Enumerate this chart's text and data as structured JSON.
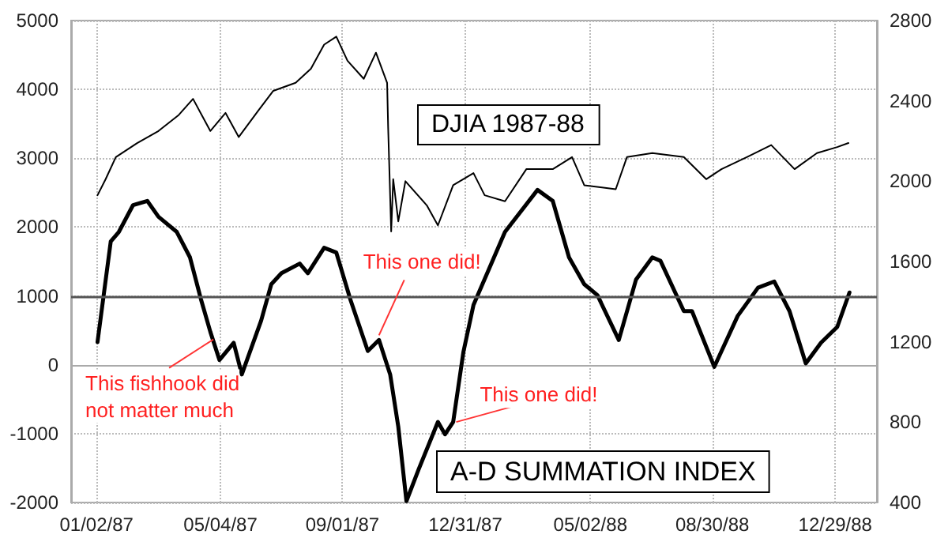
{
  "chart_data": {
    "type": "line",
    "x": [
      "1987-01-03",
      "1987-01-16",
      "1987-01-24",
      "1987-02-07",
      "1987-02-21",
      "1987-03-04",
      "1987-03-22",
      "1987-04-04",
      "1987-04-15",
      "1987-04-24",
      "1987-05-03",
      "1987-05-17",
      "1987-05-25",
      "1987-06-13",
      "1987-06-23",
      "1987-07-03",
      "1987-07-21",
      "1987-07-29",
      "1987-08-14",
      "1987-08-26",
      "1987-09-09",
      "1987-09-26",
      "1987-10-07",
      "1987-10-18",
      "1987-10-26",
      "1987-11-03",
      "1987-11-15",
      "1987-12-04",
      "1987-12-11",
      "1987-12-19",
      "1987-12-29",
      "1988-01-08",
      "1988-02-08",
      "1988-03-11",
      "1988-03-26",
      "1988-04-11",
      "1988-04-26",
      "1988-05-09",
      "1988-05-30",
      "1988-06-16",
      "1988-07-02",
      "1988-07-10",
      "1988-08-02",
      "1988-08-10",
      "1988-09-01",
      "1988-09-24",
      "1988-10-14",
      "1988-10-30",
      "1988-11-14",
      "1988-11-30",
      "1988-12-15",
      "1988-12-31",
      "1989-01-12"
    ],
    "series": [
      {
        "name": "DJIA 1987-88",
        "color": "#000000",
        "axis": "y2",
        "x": [
          "1987-01-03",
          "1987-01-11",
          "1987-01-21",
          "1987-02-11",
          "1987-03-04",
          "1987-03-24",
          "1987-04-07",
          "1987-04-24",
          "1987-05-09",
          "1987-05-22",
          "1987-06-10",
          "1987-06-25",
          "1987-07-17",
          "1987-08-01",
          "1987-08-14",
          "1987-08-26",
          "1987-09-06",
          "1987-09-22",
          "1987-10-04",
          "1987-10-15",
          "1987-10-16",
          "1987-10-19",
          "1987-10-21",
          "1987-10-26",
          "1987-11-02",
          "1987-11-23",
          "1987-12-04",
          "1987-12-19",
          "1988-01-08",
          "1988-01-19",
          "1988-02-08",
          "1988-02-29",
          "1988-03-26",
          "1988-04-14",
          "1988-04-26",
          "1988-05-27",
          "1988-06-07",
          "1988-07-02",
          "1988-08-02",
          "1988-08-24",
          "1988-09-08",
          "1988-10-03",
          "1988-10-27",
          "1988-11-19",
          "1988-12-11",
          "1988-12-31",
          "1989-01-11"
        ],
        "values": [
          1930,
          2010,
          2120,
          2190,
          2250,
          2330,
          2410,
          2250,
          2340,
          2220,
          2350,
          2450,
          2490,
          2560,
          2680,
          2720,
          2600,
          2510,
          2640,
          2490,
          2270,
          1750,
          2010,
          1800,
          2000,
          1880,
          1780,
          1980,
          2040,
          1930,
          1900,
          2060,
          2060,
          2120,
          1980,
          1960,
          2120,
          2140,
          2120,
          2010,
          2060,
          2120,
          2180,
          2060,
          2140,
          2170,
          2190
        ]
      },
      {
        "name": "A-D SUMMATION INDEX",
        "color": "#000000",
        "values": [
          330,
          1790,
          1930,
          2320,
          2380,
          2150,
          1930,
          1560,
          940,
          480,
          70,
          320,
          -140,
          640,
          1170,
          1330,
          1470,
          1330,
          1700,
          1630,
          940,
          200,
          360,
          -140,
          -900,
          -1980,
          -1520,
          -830,
          -1010,
          -830,
          180,
          870,
          1930,
          2540,
          2380,
          1560,
          1170,
          1010,
          360,
          1240,
          1560,
          1510,
          780,
          780,
          -30,
          710,
          1120,
          1210,
          780,
          20,
          320,
          550,
          1050
        ]
      }
    ],
    "xlim": [
      "1986-12-08",
      "1989-02-08"
    ],
    "xticks": [
      {
        "value": "1987-01-02",
        "label": "01/02/87"
      },
      {
        "value": "1987-05-04",
        "label": "05/04/87"
      },
      {
        "value": "1987-09-01",
        "label": "09/01/87"
      },
      {
        "value": "1987-12-31",
        "label": "12/31/87"
      },
      {
        "value": "1988-05-02",
        "label": "05/02/88"
      },
      {
        "value": "1988-08-30",
        "label": "08/30/88"
      },
      {
        "value": "1988-12-29",
        "label": "12/29/88"
      }
    ],
    "ylim": [
      -2000,
      5000
    ],
    "yticks": [
      -2000,
      -1000,
      0,
      1000,
      2000,
      3000,
      4000,
      5000
    ],
    "y2lim": [
      400,
      2800
    ],
    "y2ticks": [
      400,
      800,
      1200,
      1600,
      2000,
      2400,
      2800
    ],
    "ref_lines": [
      {
        "axis": "y",
        "value": 1000,
        "color": "#555555"
      }
    ],
    "annotations": [
      {
        "text": "This fishhook did\nnot matter much",
        "x": "1987-04-27",
        "y": 300
      },
      {
        "text": "This one did!",
        "x": "1987-10-07",
        "y": 360
      },
      {
        "text": "This one did!",
        "x": "1987-12-22",
        "y": -900
      }
    ],
    "grid": true,
    "marker": "none",
    "line_style": "solid"
  }
}
